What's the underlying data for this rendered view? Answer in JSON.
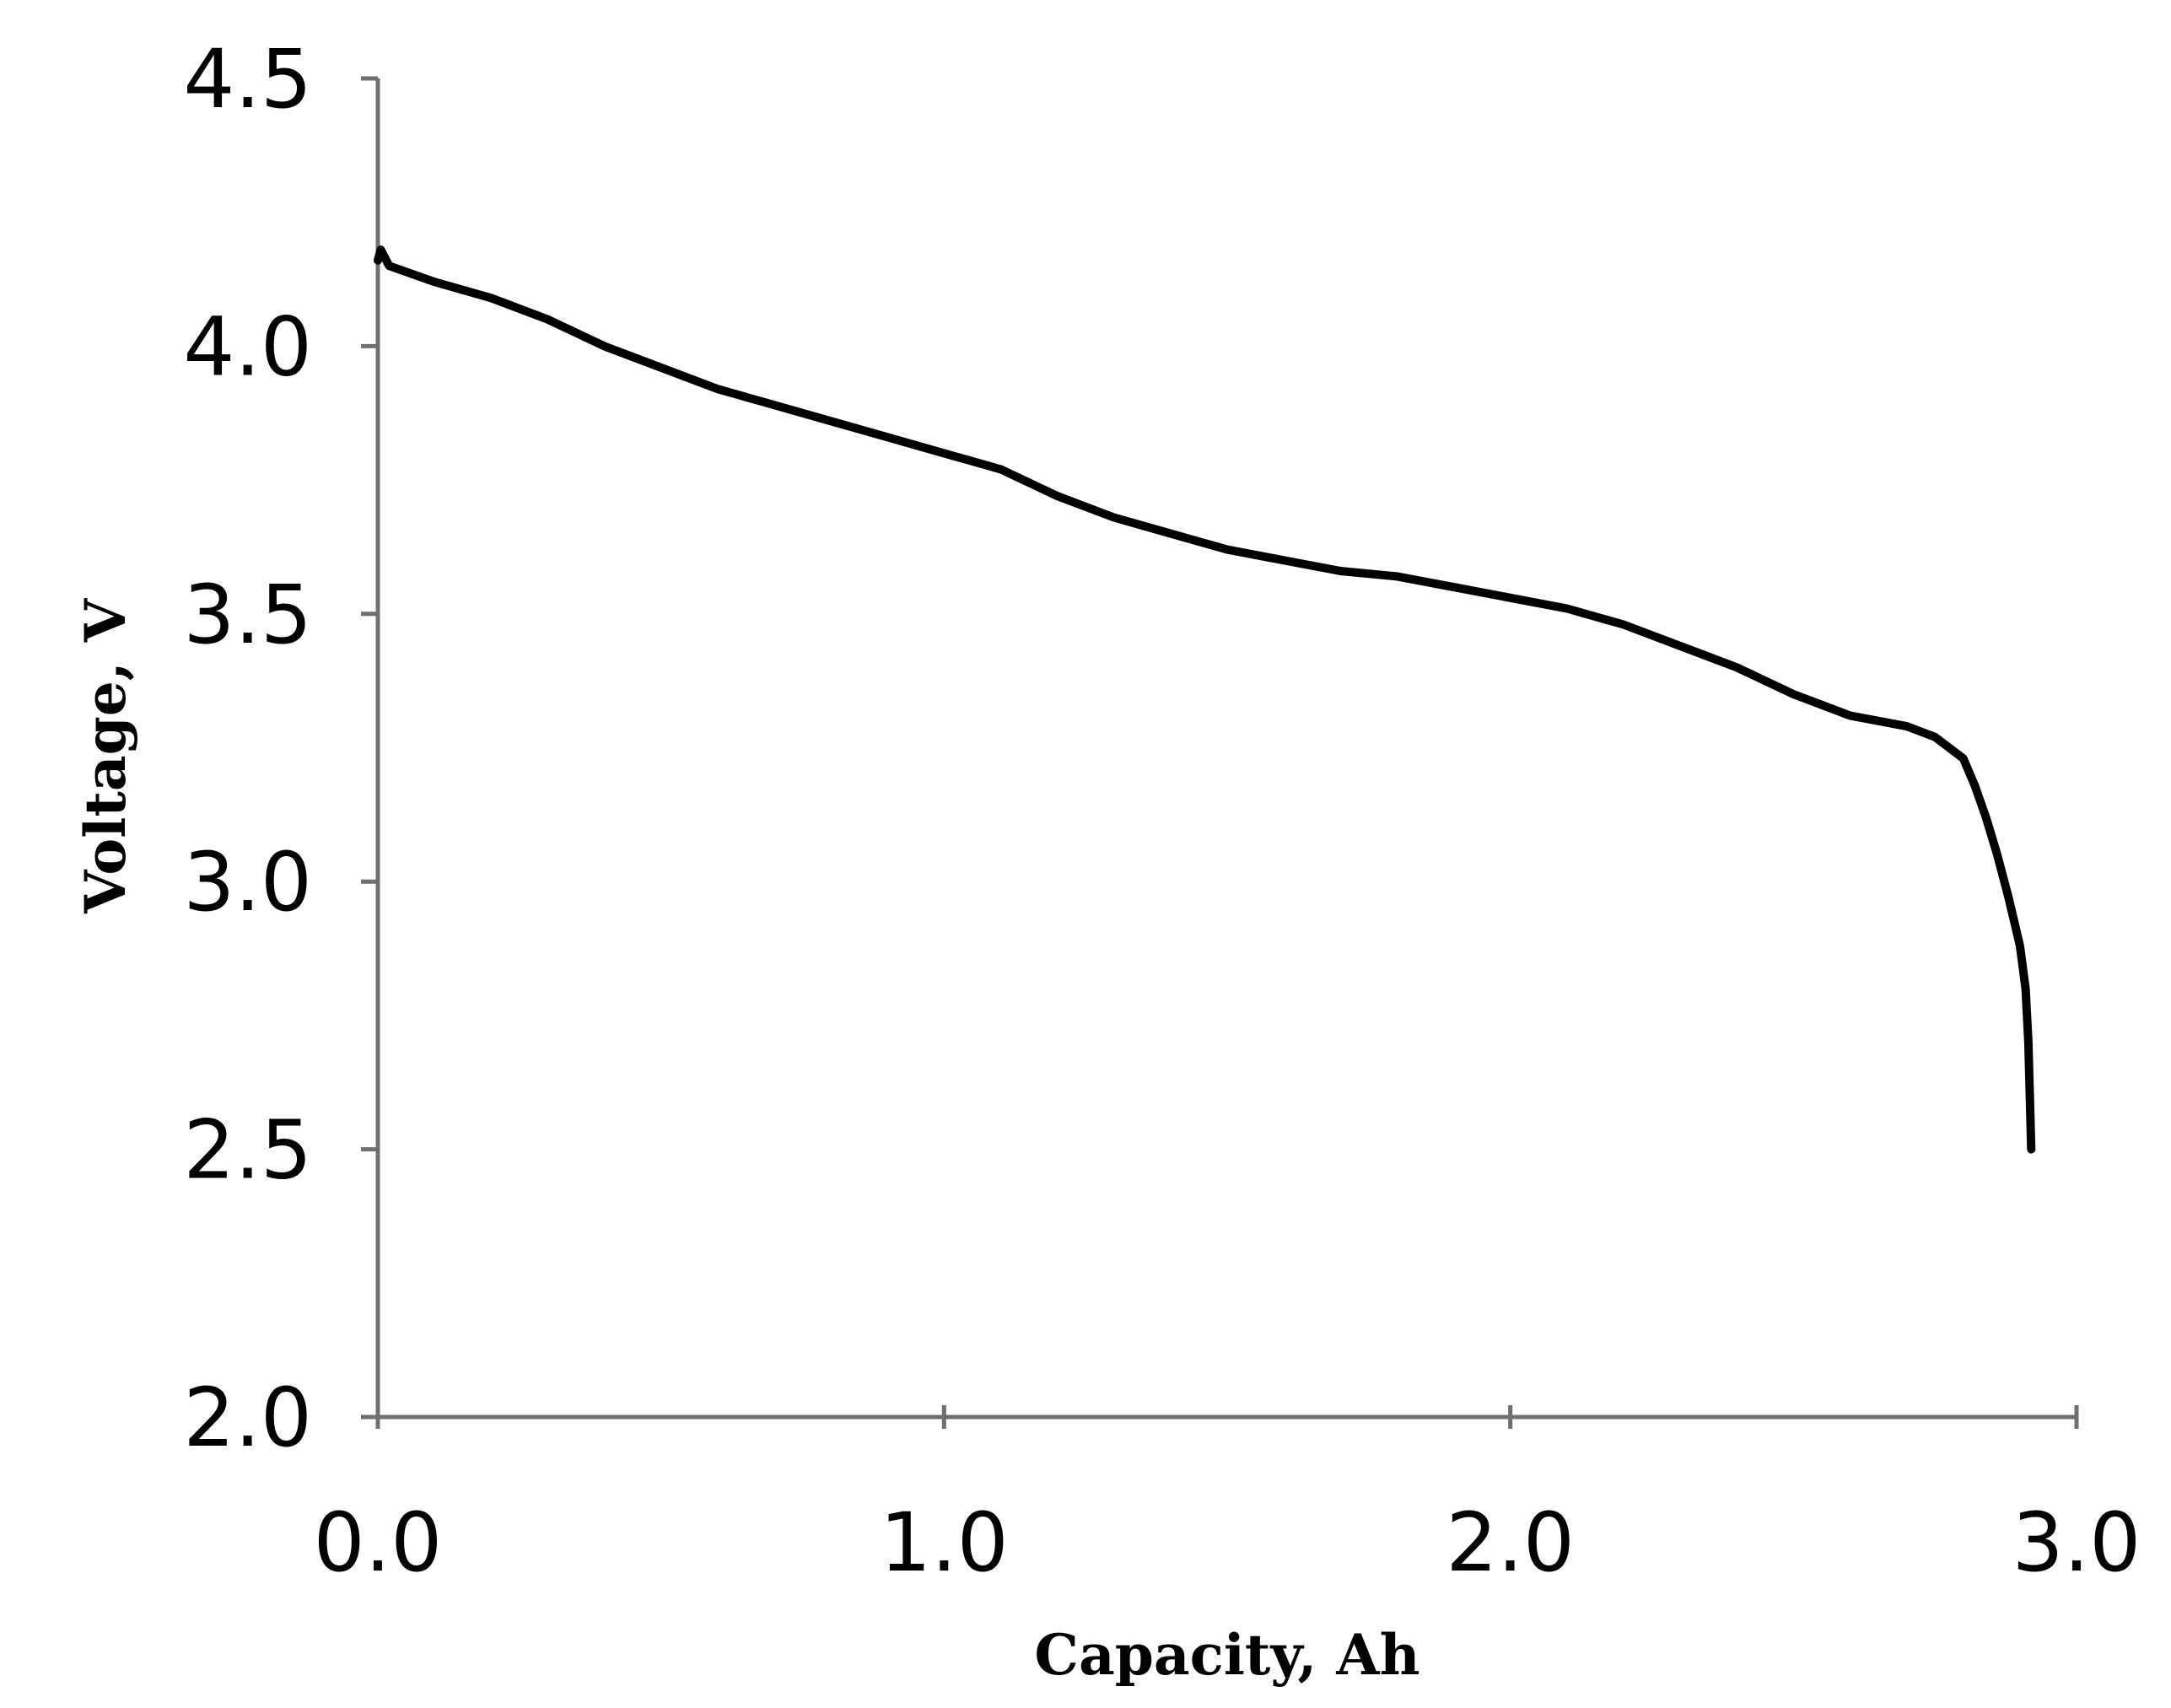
{
  "chart_data": {
    "type": "line",
    "title": "",
    "xlabel": "Capacity, Ah",
    "ylabel": "Voltage, V",
    "xlim": [
      0.0,
      3.0
    ],
    "ylim": [
      2.0,
      4.5
    ],
    "x_ticks": [
      0.0,
      1.0,
      2.0,
      3.0
    ],
    "x_tick_labels": [
      "0.0",
      "1.0",
      "2.0",
      "3.0"
    ],
    "y_ticks": [
      2.0,
      2.5,
      3.0,
      3.5,
      4.0,
      4.5
    ],
    "y_tick_labels": [
      "2.0",
      "2.5",
      "3.0",
      "3.5",
      "4.0",
      "4.5"
    ],
    "grid": false,
    "legend": "none",
    "series": [
      {
        "color": "#000000",
        "x": [
          0.0,
          0.005,
          0.02,
          0.1,
          0.2,
          0.3,
          0.4,
          0.5,
          0.6,
          0.7,
          0.8,
          0.9,
          1.0,
          1.1,
          1.2,
          1.3,
          1.4,
          1.5,
          1.6,
          1.7,
          1.8,
          1.9,
          2.0,
          2.1,
          2.2,
          2.3,
          2.4,
          2.5,
          2.6,
          2.7,
          2.75,
          2.8,
          2.82,
          2.84,
          2.86,
          2.88,
          2.9,
          2.91,
          2.915,
          2.92
        ],
        "y": [
          4.16,
          4.18,
          4.15,
          4.12,
          4.09,
          4.05,
          4.0,
          3.96,
          3.92,
          3.89,
          3.86,
          3.83,
          3.8,
          3.77,
          3.72,
          3.68,
          3.65,
          3.62,
          3.6,
          3.58,
          3.57,
          3.55,
          3.53,
          3.51,
          3.48,
          3.44,
          3.4,
          3.35,
          3.31,
          3.29,
          3.27,
          3.23,
          3.18,
          3.12,
          3.05,
          2.97,
          2.88,
          2.8,
          2.7,
          2.5
        ]
      }
    ]
  }
}
